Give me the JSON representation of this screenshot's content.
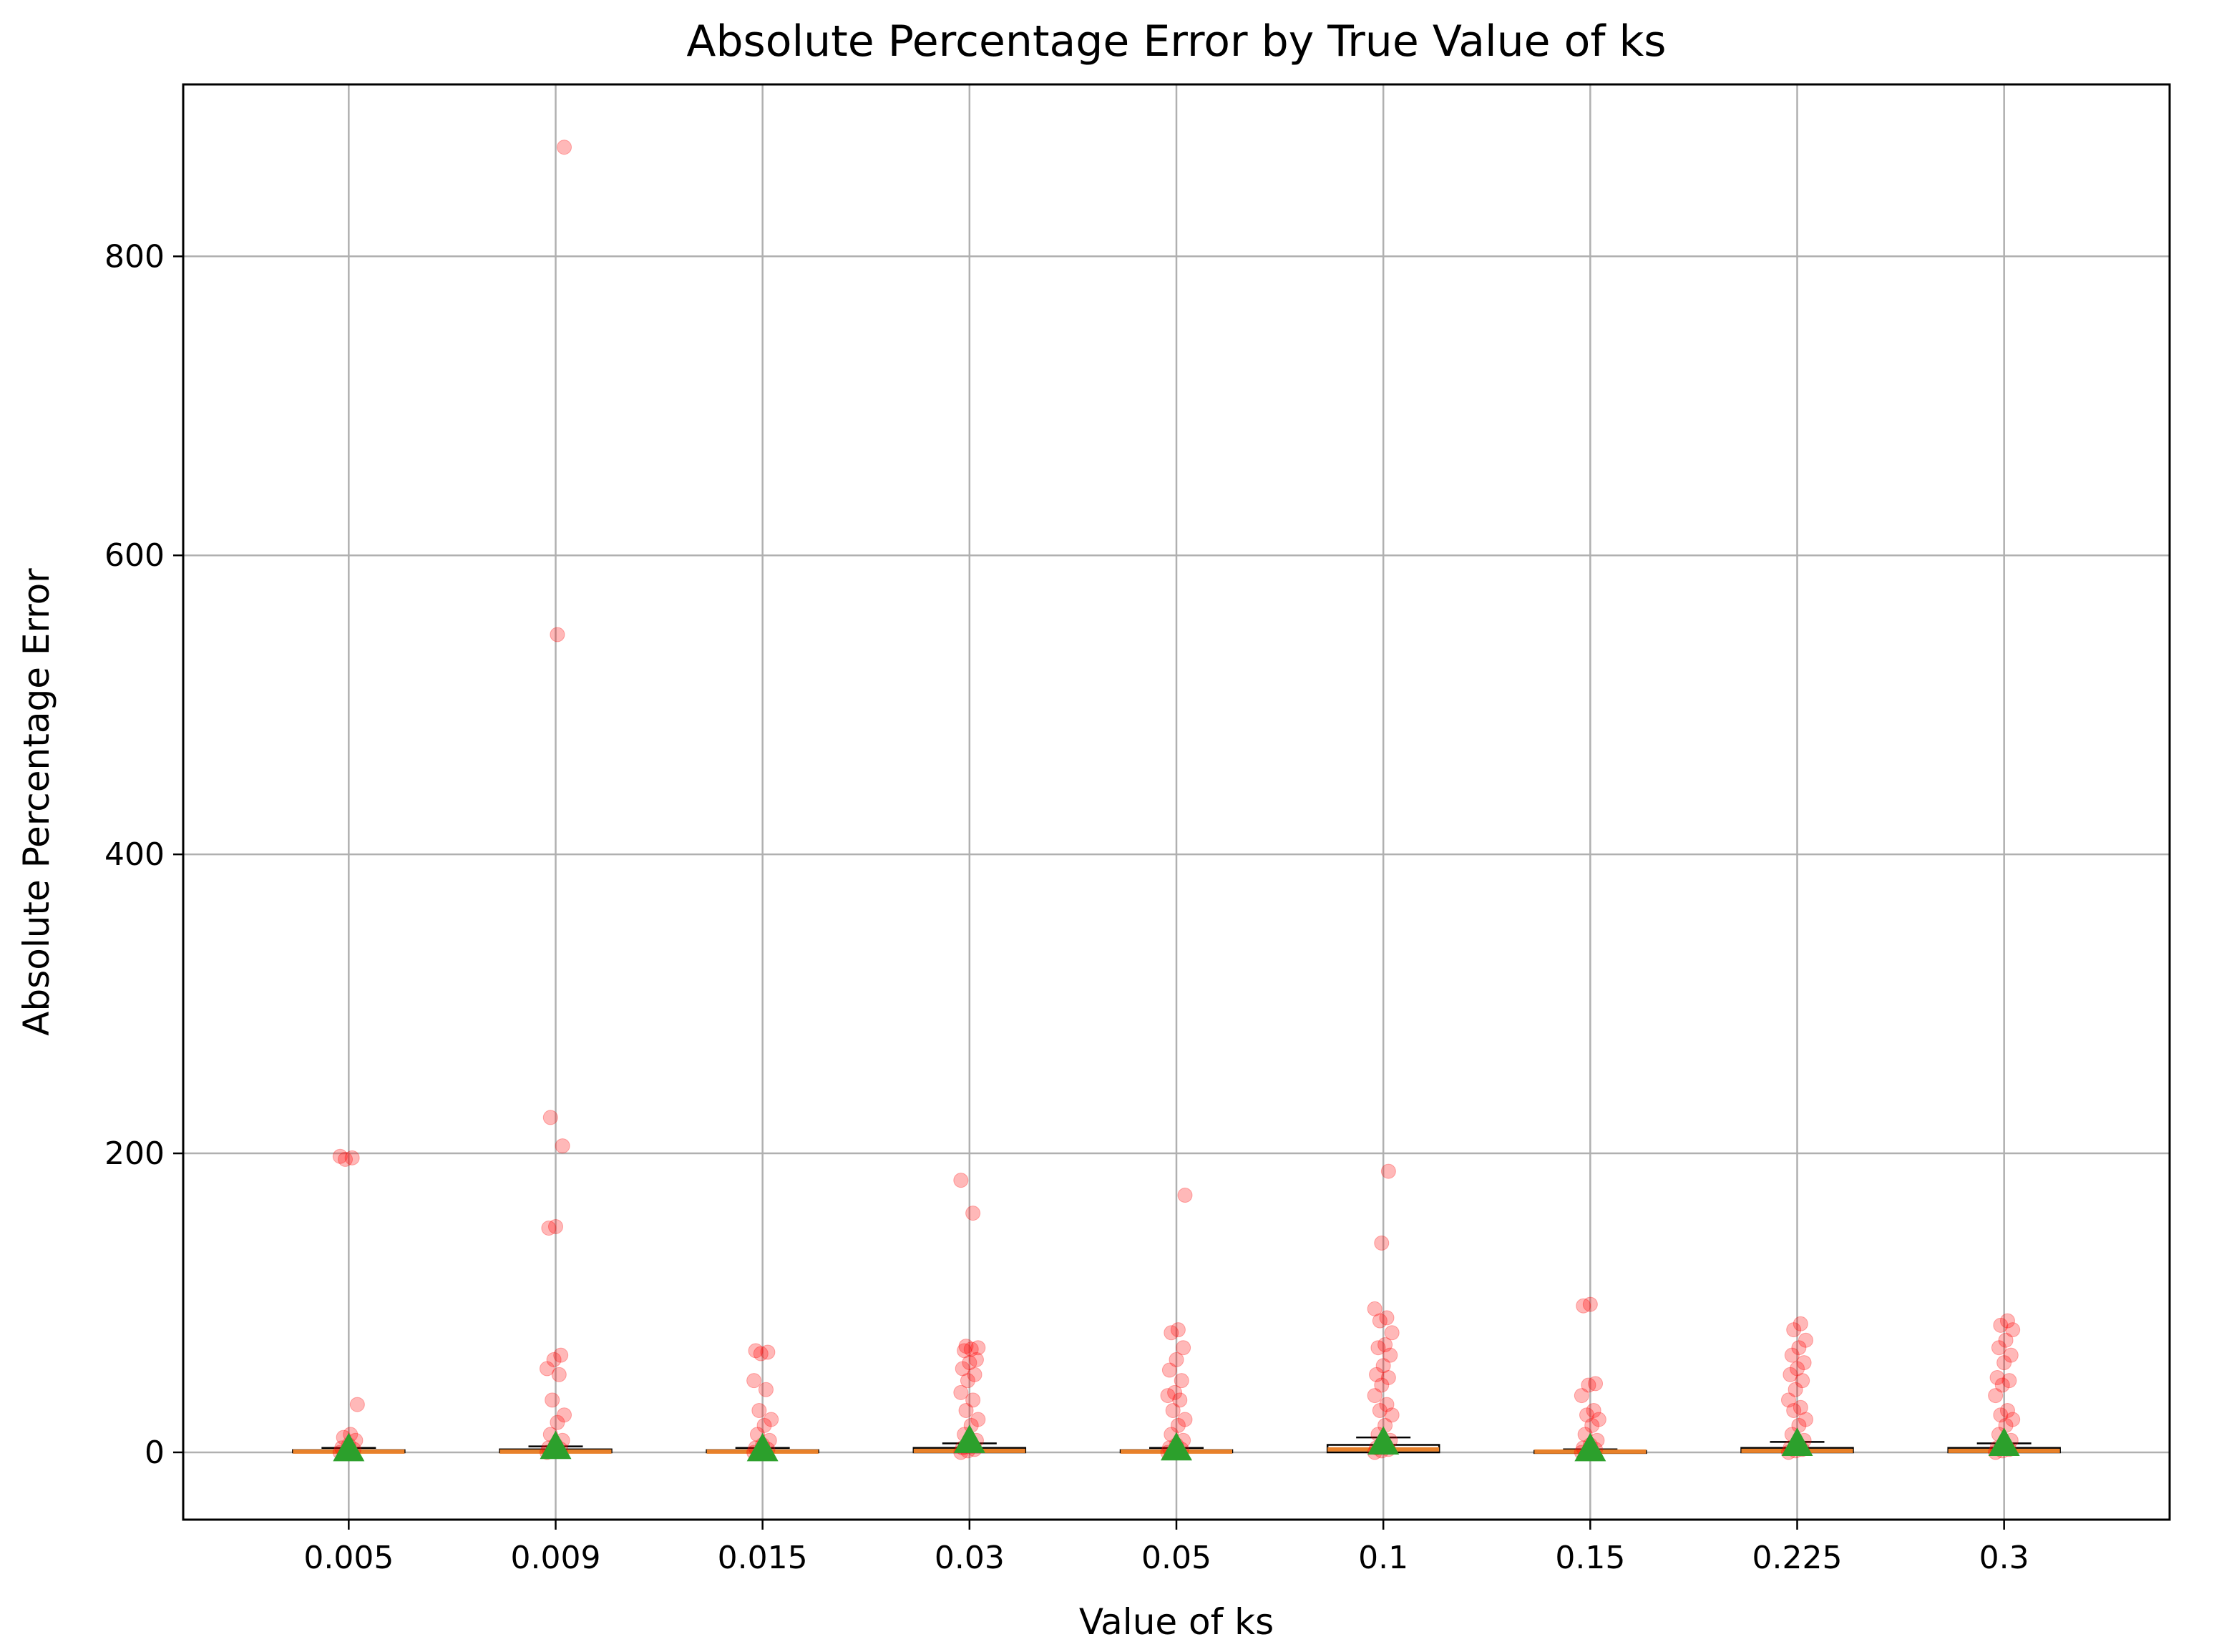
{
  "chart_data": {
    "type": "box",
    "title": "Absolute Percentage Error by True Value of ks",
    "xlabel": "Value of ks",
    "ylabel": "Absolute Percentage Error",
    "categories": [
      "0.005",
      "0.009",
      "0.015",
      "0.03",
      "0.05",
      "0.1",
      "0.15",
      "0.225",
      "0.3"
    ],
    "yticks": [
      "0",
      "200",
      "400",
      "600",
      "800"
    ],
    "ylim": [
      -45,
      915
    ],
    "grid": true,
    "colors": {
      "points": "#ff0000",
      "median": "#e8812a",
      "mean_marker": "#2ca02c",
      "box": "#000000",
      "grid": "#b0b0b0"
    },
    "boxes": [
      {
        "q1": 0,
        "median": 0.5,
        "q3": 1.5,
        "whisker_high": 3,
        "mean": 2.5
      },
      {
        "q1": 0,
        "median": 0.5,
        "q3": 2,
        "whisker_high": 4,
        "mean": 4
      },
      {
        "q1": 0,
        "median": 0.5,
        "q3": 1.5,
        "whisker_high": 3,
        "mean": 2.5
      },
      {
        "q1": 0,
        "median": 1,
        "q3": 3,
        "whisker_high": 6,
        "mean": 8
      },
      {
        "q1": 0,
        "median": 0.5,
        "q3": 1.5,
        "whisker_high": 3,
        "mean": 3
      },
      {
        "q1": 0,
        "median": 2,
        "q3": 5,
        "whisker_high": 10,
        "mean": 7
      },
      {
        "q1": 0,
        "median": 0.5,
        "q3": 1,
        "whisker_high": 2,
        "mean": 2.5
      },
      {
        "q1": 0,
        "median": 1,
        "q3": 3,
        "whisker_high": 7,
        "mean": 6
      },
      {
        "q1": 0,
        "median": 1,
        "q3": 3,
        "whisker_high": 6,
        "mean": 6
      }
    ],
    "points": [
      [
        0,
        1,
        2,
        3,
        5,
        8,
        10,
        12,
        32,
        196,
        197,
        198
      ],
      [
        0,
        1,
        2,
        3,
        5,
        8,
        12,
        20,
        25,
        35,
        52,
        56,
        62,
        65,
        150,
        151,
        205,
        224,
        547,
        873
      ],
      [
        0,
        1,
        2,
        3,
        5,
        8,
        12,
        18,
        22,
        28,
        42,
        48,
        66,
        67,
        68
      ],
      [
        0,
        1,
        2,
        3,
        5,
        8,
        12,
        18,
        22,
        28,
        35,
        40,
        48,
        52,
        56,
        60,
        62,
        68,
        69,
        70,
        71,
        160,
        182
      ],
      [
        0,
        1,
        2,
        3,
        5,
        8,
        12,
        18,
        22,
        28,
        35,
        38,
        40,
        48,
        55,
        62,
        70,
        80,
        82,
        172
      ],
      [
        0,
        1,
        2,
        3,
        5,
        8,
        12,
        18,
        25,
        28,
        32,
        38,
        45,
        50,
        52,
        58,
        65,
        70,
        72,
        80,
        88,
        90,
        96,
        140,
        188
      ],
      [
        0,
        1,
        2,
        3,
        5,
        8,
        12,
        18,
        22,
        25,
        28,
        38,
        45,
        46,
        98,
        99
      ],
      [
        0,
        1,
        2,
        3,
        5,
        8,
        12,
        18,
        22,
        28,
        30,
        35,
        42,
        48,
        52,
        56,
        60,
        65,
        70,
        75,
        82,
        86
      ],
      [
        0,
        1,
        2,
        3,
        5,
        8,
        12,
        18,
        22,
        25,
        28,
        38,
        45,
        48,
        50,
        60,
        65,
        70,
        75,
        82,
        85,
        88
      ]
    ]
  }
}
